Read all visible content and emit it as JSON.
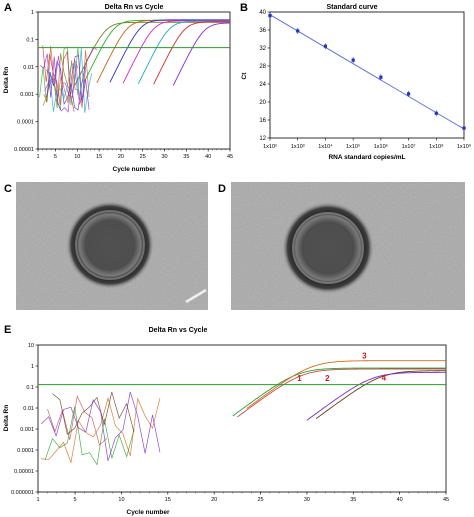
{
  "panels": {
    "A": "A",
    "B": "B",
    "C": "C",
    "D": "D",
    "E": "E"
  },
  "colors": {
    "threshold": "#2a9a2a",
    "standard_line": "#5a6ed0",
    "standard_points": "#2233bb",
    "curve_labels": "#d01818",
    "em_background": "#a9a9a9"
  },
  "chart_data": [
    {
      "id": "A",
      "type": "line",
      "title": "Delta Rn vs Cycle",
      "xlabel": "Cycle number",
      "ylabel": "Delta Rn",
      "xlim": [
        1,
        45
      ],
      "ylim": [
        1e-05,
        1
      ],
      "yscale": "log",
      "xticks": [
        "1",
        "5",
        "10",
        "15",
        "20",
        "25",
        "30",
        "35",
        "40",
        "45"
      ],
      "yticks": [
        "1",
        "0.1",
        "0.01",
        "0.001",
        "0.0001",
        "0.00001"
      ],
      "threshold": 0.05,
      "grid": false,
      "series": [
        {
          "color": "#7a7a2a",
          "midpoint": 16.5,
          "plateau": 0.42
        },
        {
          "color": "#2ab02a",
          "midpoint": 18.5,
          "plateau": 0.5
        },
        {
          "color": "#c86414",
          "midpoint": 21.5,
          "plateau": 0.5
        },
        {
          "color": "#3030c8",
          "midpoint": 24.5,
          "plateau": 0.52
        },
        {
          "color": "#c82acb",
          "midpoint": 27.5,
          "plateau": 0.48
        },
        {
          "color": "#1ea8c8",
          "midpoint": 31,
          "plateau": 0.46
        },
        {
          "color": "#d82a2a",
          "midpoint": 34.5,
          "plateau": 0.44
        },
        {
          "color": "#8a2ad8",
          "midpoint": 39,
          "plateau": 0.4
        }
      ]
    },
    {
      "id": "B",
      "type": "scatter",
      "title": "Standard curve",
      "xlabel": "RNA standard copies/mL",
      "ylabel": "Ct",
      "xlim": [
        2,
        9
      ],
      "ylim": [
        12,
        40
      ],
      "xscale": "log",
      "xticks": [
        "1x10²",
        "1x10³",
        "1x10⁴",
        "1x10⁵",
        "1x10⁶",
        "1x10⁷",
        "1x10⁸",
        "1x10⁹"
      ],
      "yticks": [
        "12",
        "16",
        "20",
        "24",
        "28",
        "32",
        "36",
        "40"
      ],
      "grid": false,
      "points": [
        {
          "x": 2,
          "y": 39.2
        },
        {
          "x": 3,
          "y": 35.8
        },
        {
          "x": 4,
          "y": 32.4
        },
        {
          "x": 5,
          "y": 29.3
        },
        {
          "x": 6,
          "y": 25.5
        },
        {
          "x": 7,
          "y": 21.8
        },
        {
          "x": 8,
          "y": 17.5
        },
        {
          "x": 9,
          "y": 14.2
        }
      ],
      "fit": {
        "x0": 2,
        "y0": 39.4,
        "x1": 9,
        "y1": 14.0
      }
    },
    {
      "id": "E",
      "type": "line",
      "title": "Delta Rn vs Cycle",
      "xlabel": "Cycle number",
      "ylabel": "Delta Rn",
      "xlim": [
        1,
        45
      ],
      "ylim": [
        1e-06,
        10
      ],
      "yscale": "log",
      "xticks": [
        "1",
        "5",
        "10",
        "15",
        "20",
        "25",
        "30",
        "35",
        "40",
        "45"
      ],
      "yticks": [
        "10",
        "1",
        "0.1",
        "0.01",
        "0.001",
        "0.0001",
        "0.00001",
        "0.000001"
      ],
      "threshold": 0.13,
      "grid": false,
      "series": [
        {
          "name": "1",
          "color": "#2aa02a",
          "midpoint": 29,
          "plateau": 0.8
        },
        {
          "name": "2",
          "color": "#c05050",
          "midpoint": 29.5,
          "plateau": 0.72
        },
        {
          "name": "3",
          "color": "#d46a1a",
          "midpoint": 30.5,
          "plateau": 1.8
        },
        {
          "name": "4",
          "color": "#6a3a1a",
          "midpoint": 38,
          "plateau": 0.6
        },
        {
          "color": "#7a2ad0",
          "midpoint": 37,
          "plateau": 0.5
        }
      ],
      "annotations": [
        "1",
        "2",
        "3",
        "4"
      ]
    }
  ]
}
